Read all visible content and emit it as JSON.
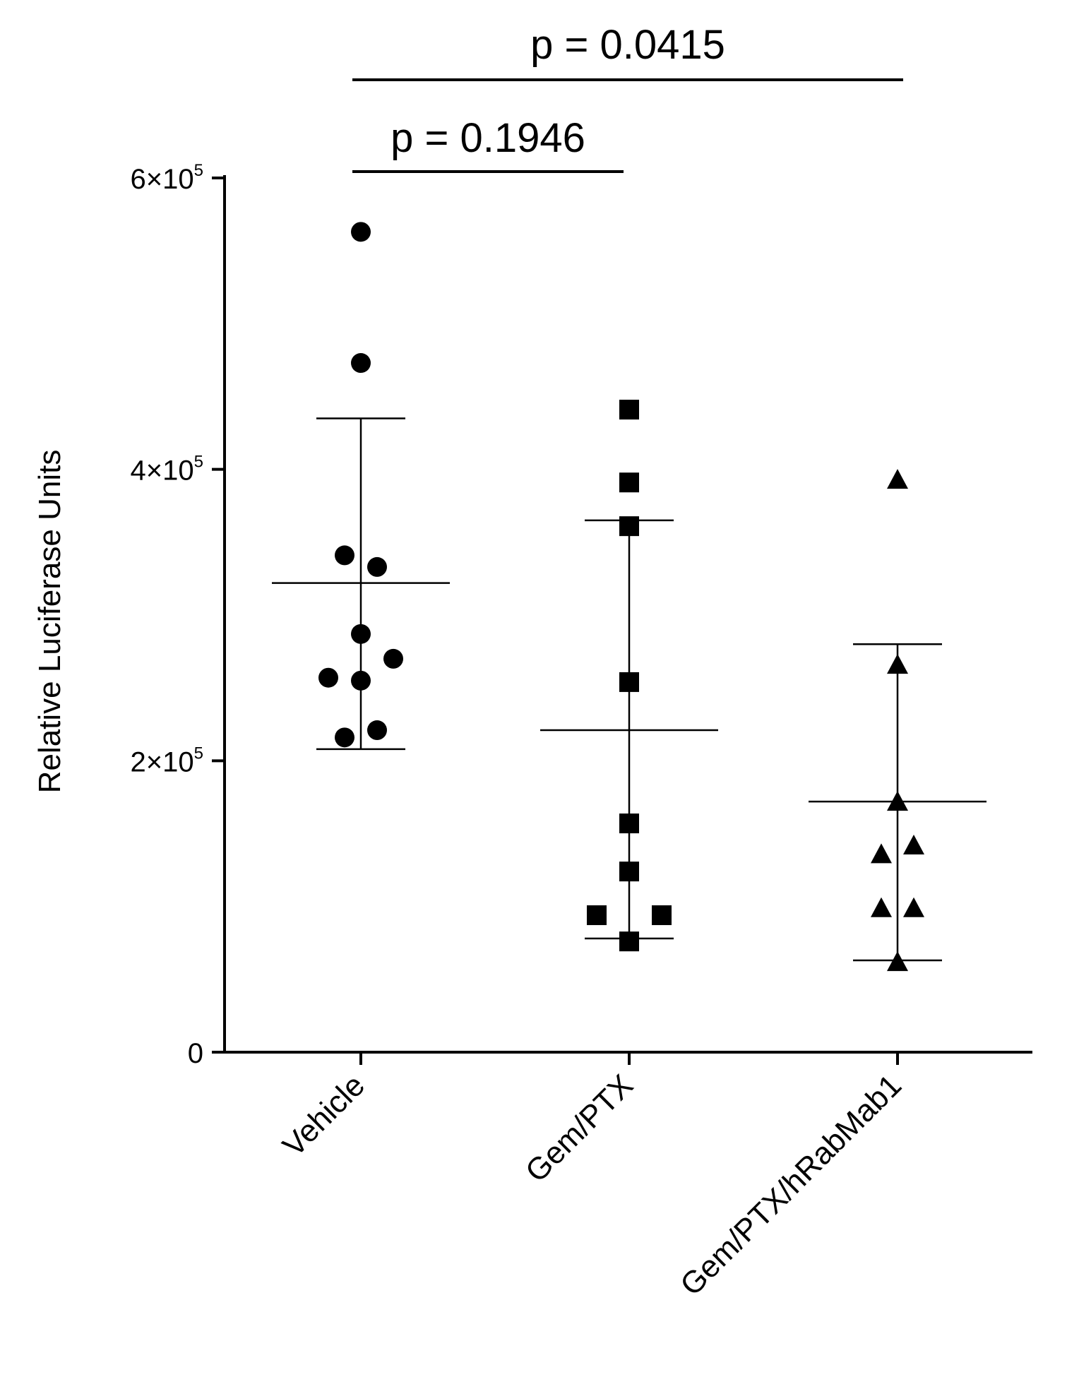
{
  "chart_data": {
    "type": "scatter",
    "ylabel": "Relative Luciferase Units",
    "xlabel": "",
    "ylim": [
      0,
      600000
    ],
    "yticks": [
      {
        "value": 0,
        "mantissa": "0",
        "exponent": ""
      },
      {
        "value": 200000,
        "mantissa": "2×10",
        "exponent": "5"
      },
      {
        "value": 400000,
        "mantissa": "4×10",
        "exponent": "5"
      },
      {
        "value": 600000,
        "mantissa": "6×10",
        "exponent": "5"
      }
    ],
    "categories": [
      "Vehicle",
      "Gem/PTX",
      "Gem/PTX/hRabMab1"
    ],
    "series": [
      {
        "name": "Vehicle",
        "marker": "circle",
        "mean": 322000,
        "upper": 435000,
        "lower": 208000,
        "points": [
          {
            "offset": 0,
            "value": 563000
          },
          {
            "offset": 0,
            "value": 473000
          },
          {
            "offset": -0.25,
            "value": 341000
          },
          {
            "offset": 0.25,
            "value": 333000
          },
          {
            "offset": 0,
            "value": 287000
          },
          {
            "offset": 0.5,
            "value": 270000
          },
          {
            "offset": -0.5,
            "value": 257000
          },
          {
            "offset": 0,
            "value": 255000
          },
          {
            "offset": -0.25,
            "value": 216000
          },
          {
            "offset": 0.25,
            "value": 221000
          }
        ]
      },
      {
        "name": "Gem/PTX",
        "marker": "square",
        "mean": 221000,
        "upper": 365000,
        "lower": 78000,
        "points": [
          {
            "offset": 0,
            "value": 441000
          },
          {
            "offset": 0,
            "value": 391000
          },
          {
            "offset": 0,
            "value": 361000
          },
          {
            "offset": 0,
            "value": 254000
          },
          {
            "offset": 0,
            "value": 157000
          },
          {
            "offset": 0,
            "value": 124000
          },
          {
            "offset": -0.5,
            "value": 94000
          },
          {
            "offset": 0.5,
            "value": 94000
          },
          {
            "offset": 0,
            "value": 76000
          }
        ]
      },
      {
        "name": "Gem/PTX/hRabMab1",
        "marker": "triangle",
        "mean": 172000,
        "upper": 280000,
        "lower": 63000,
        "points": [
          {
            "offset": 0,
            "value": 393000
          },
          {
            "offset": 0,
            "value": 266000
          },
          {
            "offset": 0,
            "value": 172000
          },
          {
            "offset": 0.25,
            "value": 142000
          },
          {
            "offset": -0.25,
            "value": 136000
          },
          {
            "offset": -0.25,
            "value": 99000
          },
          {
            "offset": 0.25,
            "value": 99000
          },
          {
            "offset": 0,
            "value": 62000
          }
        ]
      }
    ],
    "comparisons": [
      {
        "from": 0,
        "to": 2,
        "label": "p = 0.0415"
      },
      {
        "from": 0,
        "to": 1,
        "label": "p = 0.1946"
      }
    ]
  }
}
